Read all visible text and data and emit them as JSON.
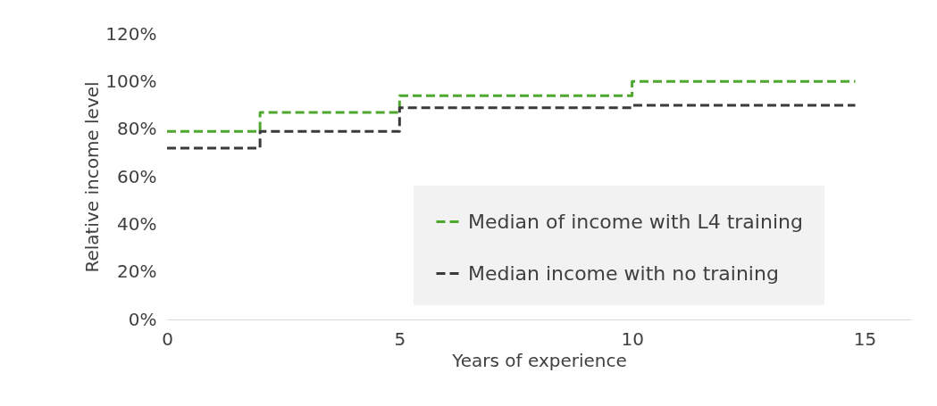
{
  "chart_data": {
    "type": "step",
    "xlabel": "Years of experience",
    "ylabel": "Relative income level",
    "x": [
      0,
      2,
      5,
      10,
      14.8
    ],
    "series": [
      {
        "name": "Median of income with L4 training",
        "color": "#4ea72e",
        "values": [
          79,
          87,
          94,
          100,
          100
        ]
      },
      {
        "name": "Median income with no training",
        "color": "#3a3a3a",
        "values": [
          72,
          79,
          89,
          90,
          90
        ]
      }
    ],
    "xlim": [
      0,
      16
    ],
    "xticks": [
      0,
      5,
      10,
      15
    ],
    "ylim": [
      0,
      120
    ],
    "yticks": [
      {
        "value": 0,
        "label": "0%"
      },
      {
        "value": 20,
        "label": "20%"
      },
      {
        "value": 40,
        "label": "40%"
      },
      {
        "value": 60,
        "label": "60%"
      },
      {
        "value": 80,
        "label": "80%"
      },
      {
        "value": 100,
        "label": "100%"
      },
      {
        "value": 120,
        "label": "120%"
      }
    ],
    "grid": false,
    "legend": "bottom right",
    "line_style": "dashed",
    "marker": "none"
  }
}
